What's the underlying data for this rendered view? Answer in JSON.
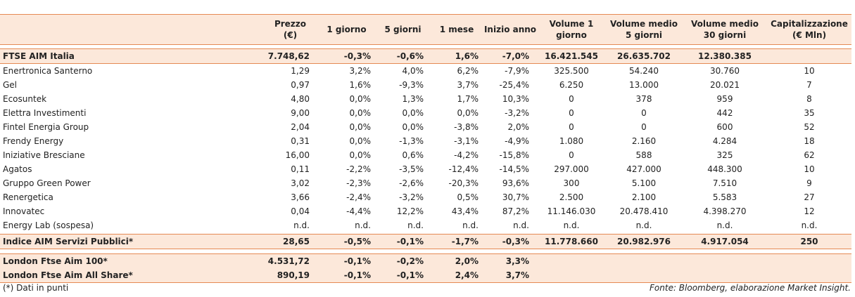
{
  "table": {
    "header": [
      [
        "Prezzo",
        "(€)"
      ],
      [
        "1 giorno"
      ],
      [
        "5 giorni"
      ],
      [
        "1 mese"
      ],
      [
        "Inizio anno"
      ],
      [
        "Volume 1",
        "giorno"
      ],
      [
        "Volume medio",
        "5 giorni"
      ],
      [
        "Volume medio",
        "30 giorni"
      ],
      [
        "Capitalizzazione",
        "(€ Mln)"
      ]
    ],
    "index_row": [
      "FTSE AIM Italia",
      "7.748,62",
      "-0,3%",
      "-0,6%",
      "1,6%",
      "-7,0%",
      "16.421.545",
      "26.635.702",
      "12.380.385"
    ],
    "rows": [
      [
        "Enertronica Santerno",
        "1,29",
        "3,2%",
        "4,0%",
        "6,2%",
        "-7,9%",
        "325.500",
        "54.240",
        "30.760",
        "10"
      ],
      [
        "Gel",
        "0,97",
        "1,6%",
        "-9,3%",
        "3,7%",
        "-25,4%",
        "6.250",
        "13.000",
        "20.021",
        "7"
      ],
      [
        "Ecosuntek",
        "4,80",
        "0,0%",
        "1,3%",
        "1,7%",
        "10,3%",
        "0",
        "378",
        "959",
        "8"
      ],
      [
        "Elettra Investimenti",
        "9,00",
        "0,0%",
        "0,0%",
        "0,0%",
        "-3,2%",
        "0",
        "0",
        "442",
        "35"
      ],
      [
        "Fintel Energia Group",
        "2,04",
        "0,0%",
        "0,0%",
        "-3,8%",
        "2,0%",
        "0",
        "0",
        "600",
        "52"
      ],
      [
        "Frendy Energy",
        "0,31",
        "0,0%",
        "-1,3%",
        "-3,1%",
        "-4,9%",
        "1.080",
        "2.160",
        "4.284",
        "18"
      ],
      [
        "Iniziative Bresciane",
        "16,00",
        "0,0%",
        "0,6%",
        "-4,2%",
        "-15,8%",
        "0",
        "588",
        "325",
        "62"
      ],
      [
        "Agatos",
        "0,11",
        "-2,2%",
        "-3,5%",
        "-12,4%",
        "-14,5%",
        "297.000",
        "427.000",
        "448.300",
        "10"
      ],
      [
        "Gruppo Green Power",
        "3,02",
        "-2,3%",
        "-2,6%",
        "-20,3%",
        "93,6%",
        "300",
        "5.100",
        "7.510",
        "9"
      ],
      [
        "Renergetica",
        "3,66",
        "-2,4%",
        "-3,2%",
        "0,5%",
        "30,7%",
        "2.500",
        "2.100",
        "5.583",
        "27"
      ],
      [
        "Innovatec",
        "0,04",
        "-4,4%",
        "12,2%",
        "43,4%",
        "87,2%",
        "11.146.030",
        "20.478.410",
        "4.398.270",
        "12"
      ],
      [
        "Energy Lab (sospesa)",
        "n.d.",
        "n.d.",
        "n.d.",
        "n.d.",
        "n.d.",
        "n.d.",
        "n.d.",
        "n.d.",
        "n.d."
      ]
    ],
    "sector_row": [
      "Indice AIM Servizi Pubblici*",
      "28,65",
      "-0,5%",
      "-0,1%",
      "-1,7%",
      "-0,3%",
      "11.778.660",
      "20.982.976",
      "4.917.054",
      "250"
    ],
    "london_rows": [
      [
        "London Ftse Aim 100*",
        "4.531,72",
        "-0,1%",
        "-0,2%",
        "2,0%",
        "3,3%"
      ],
      [
        "London Ftse Aim All Share*",
        "890,19",
        "-0,1%",
        "-0,1%",
        "2,4%",
        "3,7%"
      ]
    ]
  },
  "footer": {
    "note": "(*) Dati in punti",
    "source": "Fonte: Bloomberg, elaborazione Market Insight."
  }
}
